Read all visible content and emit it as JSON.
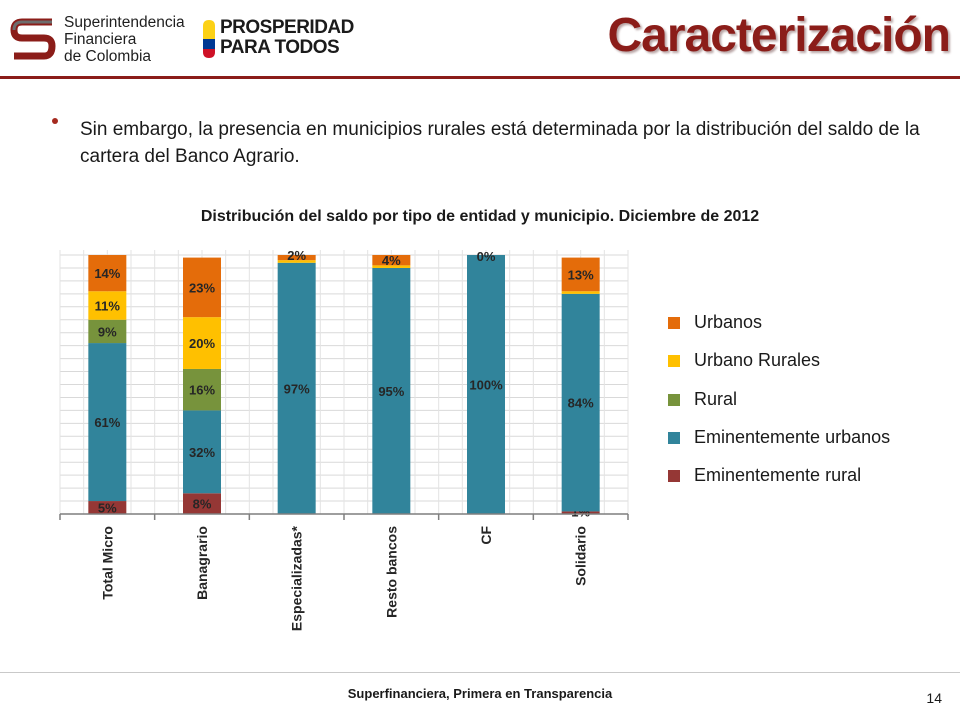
{
  "header": {
    "sfc_logo_lines": [
      "Superintendencia",
      "Financiera",
      "de Colombia"
    ],
    "prosperidad_lines": [
      "PROSPERIDAD",
      "PARA TODOS"
    ],
    "title": "Caracterización"
  },
  "body": {
    "bullet": "Sin embargo, la presencia en municipios rurales está determinada por la distribución del saldo de la cartera del Banco Agrario."
  },
  "footer": {
    "text": "Superfinanciera, Primera en Transparencia",
    "page_number": "14"
  },
  "colors": {
    "title": "#8b1d19",
    "urbanos": "#e46c0a",
    "urbano_rurales": "#ffc000",
    "rural": "#77933c",
    "eminentemente_urbanos": "#31849b",
    "eminentemente_rural": "#953735"
  },
  "chart_data": {
    "type": "bar",
    "stacked": true,
    "title": "Distribución del saldo por tipo de entidad  y municipio. Diciembre de 2012",
    "categories": [
      "Total Micro",
      "Banagrario",
      "Especializadas*",
      "Resto bancos",
      "CF",
      "Solidario"
    ],
    "ylim": [
      0,
      100
    ],
    "grid": true,
    "legend_position": "right",
    "series": [
      {
        "name": "Eminentemente rural",
        "color": "#953735",
        "values": [
          5,
          8,
          0,
          0,
          0,
          1
        ],
        "labels": [
          "5%",
          "8%",
          "",
          "",
          "",
          "1%"
        ]
      },
      {
        "name": "Eminentemente urbanos",
        "color": "#31849b",
        "values": [
          61,
          32,
          97,
          95,
          100,
          84
        ],
        "labels": [
          "61%",
          "32%",
          "97%",
          "95%",
          "100%",
          "84%"
        ]
      },
      {
        "name": "Rural",
        "color": "#77933c",
        "values": [
          9,
          16,
          0,
          0,
          0,
          0
        ],
        "labels": [
          "9%",
          "16%",
          "",
          "",
          "",
          ""
        ]
      },
      {
        "name": "Urbano Rurales",
        "color": "#ffc000",
        "values": [
          11,
          20,
          1,
          1,
          0,
          1
        ],
        "labels": [
          "11%",
          "20%",
          "",
          "",
          "",
          ""
        ]
      },
      {
        "name": "Urbanos",
        "color": "#e46c0a",
        "values": [
          14,
          23,
          2,
          4,
          0,
          13
        ],
        "labels": [
          "14%",
          "23%",
          "2%",
          "4%",
          "0%",
          "13%"
        ]
      }
    ],
    "legend": [
      "Urbanos",
      "Urbano Rurales",
      "Rural",
      "Eminentemente urbanos",
      "Eminentemente rural"
    ]
  }
}
